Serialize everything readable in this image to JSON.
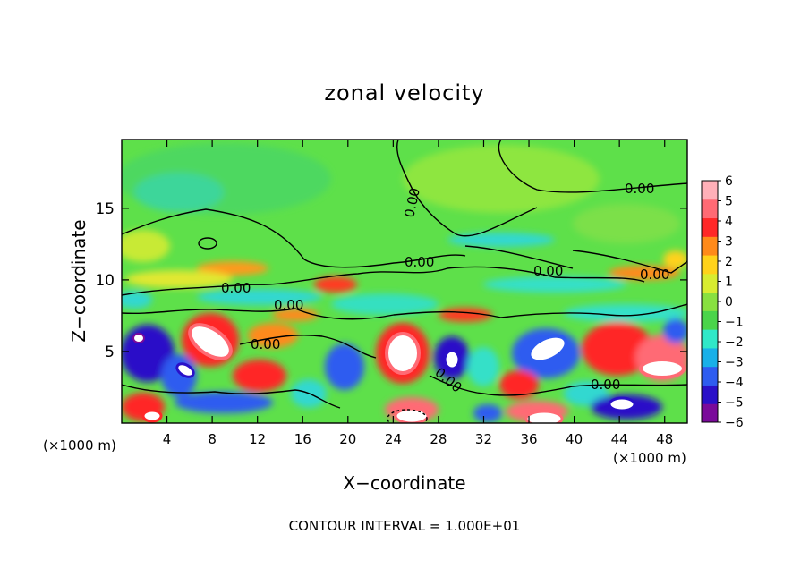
{
  "chart_data": {
    "type": "heatmap",
    "title": "zonal velocity",
    "xlabel": "X−coordinate",
    "ylabel": "Z−coordinate",
    "x_unit_left": "(×1000 m)",
    "x_unit_right": "(×1000 m)",
    "footer": "CONTOUR INTERVAL = 1.000E+01",
    "xlim": [
      0,
      50
    ],
    "ylim": [
      0,
      19.8
    ],
    "x_ticks": [
      4,
      8,
      12,
      16,
      20,
      24,
      28,
      32,
      36,
      40,
      44,
      48
    ],
    "y_ticks": [
      5,
      10,
      15
    ],
    "colorbar": {
      "min": -6,
      "max": 6,
      "ticks": [
        6,
        5,
        4,
        3,
        2,
        1,
        0,
        -1,
        -2,
        -3,
        -4,
        -5,
        -6
      ],
      "colors": [
        "#7a0a9a",
        "#2a10c8",
        "#2e5cf0",
        "#18b0e8",
        "#30e8c8",
        "#4ad44a",
        "#88e040",
        "#d8ec30",
        "#ffd21a",
        "#ff8a1a",
        "#ff2828",
        "#ff6a74",
        "#ffb0b8"
      ]
    },
    "contour_labels": [
      "0.00",
      "0.00",
      "0.00",
      "0.00",
      "0.00",
      "0.00",
      "0.00",
      "0.00",
      "0.00",
      "0.00"
    ],
    "grid": false
  }
}
